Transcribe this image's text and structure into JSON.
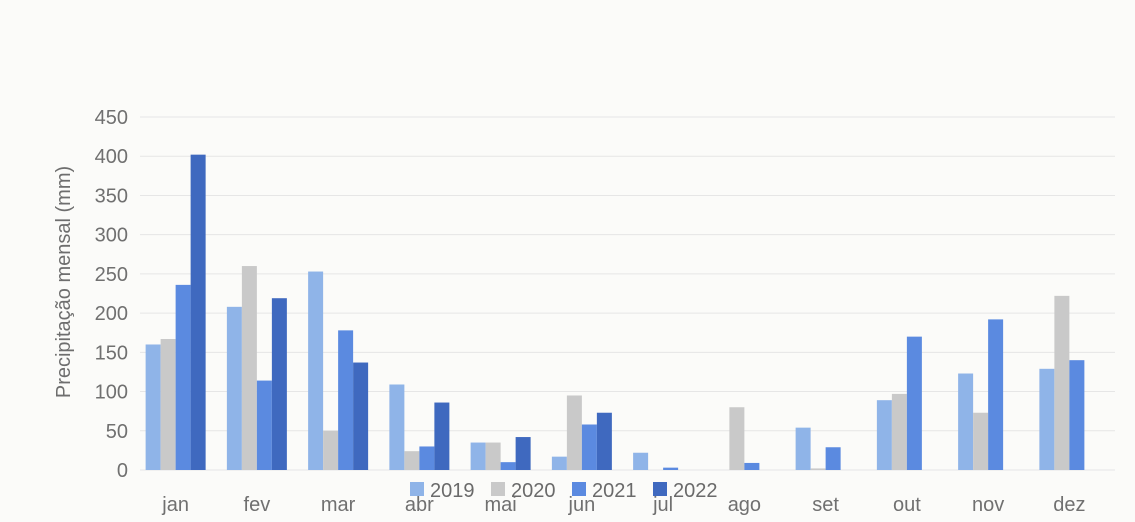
{
  "chart_data": {
    "type": "bar",
    "title": "",
    "xlabel": "",
    "ylabel": "Precipitação mensal (mm)",
    "ylim": [
      0,
      450
    ],
    "yticks": [
      0,
      50,
      100,
      150,
      200,
      250,
      300,
      350,
      400,
      450
    ],
    "grid": true,
    "legend_position": "bottom",
    "categories": [
      "jan",
      "fev",
      "mar",
      "abr",
      "mai",
      "jun",
      "jul",
      "ago",
      "set",
      "out",
      "nov",
      "dez"
    ],
    "series": [
      {
        "name": "2019",
        "color": "#8fb4e8",
        "values": [
          160,
          208,
          253,
          109,
          35,
          17,
          22,
          0,
          54,
          89,
          123,
          129
        ]
      },
      {
        "name": "2020",
        "color": "#c9c9c9",
        "values": [
          167,
          260,
          50,
          24,
          35,
          95,
          0,
          80,
          2,
          97,
          73,
          222
        ]
      },
      {
        "name": "2021",
        "color": "#5b8ae0",
        "values": [
          236,
          114,
          178,
          30,
          10,
          58,
          3,
          9,
          29,
          170,
          192,
          140
        ]
      },
      {
        "name": "2022",
        "color": "#3f69bf",
        "values": [
          402,
          219,
          137,
          86,
          42,
          73,
          0,
          0,
          0,
          0,
          0,
          0
        ]
      }
    ]
  }
}
